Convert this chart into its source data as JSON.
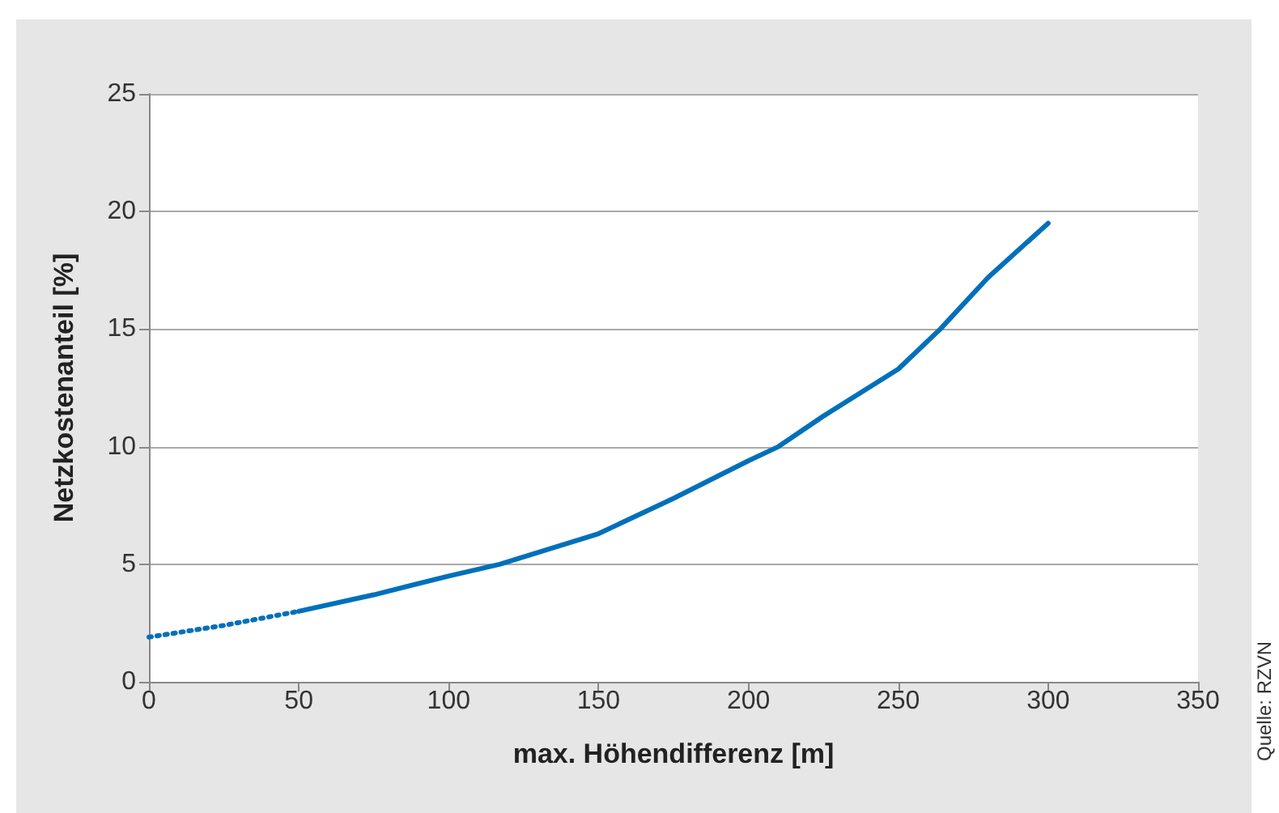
{
  "chart_data": {
    "type": "line",
    "xlabel": "max. Höhendifferenz [m]",
    "ylabel": "Netzkostenanteil [%]",
    "series": [
      {
        "x": [
          0,
          25,
          50
        ],
        "values": [
          1.9,
          2.4,
          3.0
        ],
        "color": "#0070bb",
        "line_style": "dotted"
      },
      {
        "x": [
          50,
          75,
          100,
          117,
          150,
          175,
          200,
          210,
          225,
          250,
          264,
          280,
          300
        ],
        "values": [
          3.0,
          3.7,
          4.5,
          5,
          6.3,
          7.8,
          9.4,
          10,
          11.3,
          13.3,
          15,
          17.2,
          19.5
        ],
        "color": "#0070bb",
        "line_style": "solid"
      }
    ],
    "xlim": [
      0,
      350
    ],
    "xticks": [
      0,
      50,
      100,
      150,
      200,
      250,
      300,
      350
    ],
    "ylim": [
      0,
      25
    ],
    "yticks": [
      0,
      5,
      10,
      15,
      20,
      25
    ],
    "grid": "y",
    "marker": "none",
    "annotations": [
      "Quelle: RZVN"
    ]
  }
}
